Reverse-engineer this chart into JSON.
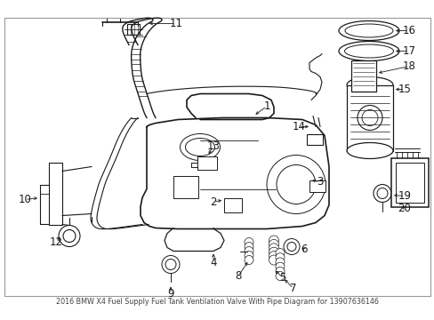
{
  "title": "2016 BMW X4 Fuel Supply Fuel Tank Ventilation Valve With Pipe Diagram for 13907636146",
  "bg": "#ffffff",
  "lc": "#1a1a1a",
  "label_fs": 8.5,
  "title_fs": 5.8,
  "fig_w": 4.89,
  "fig_h": 3.6,
  "dpi": 100
}
